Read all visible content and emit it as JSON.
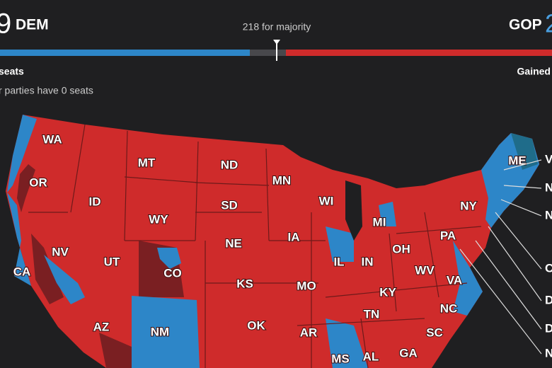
{
  "header": {
    "dem_count": "9",
    "dem_label": "DEM",
    "majority": "218 for majority",
    "gop_label": "GOP",
    "gop_count": "2",
    "dem_seats": "seats",
    "gop_gained": "Gained",
    "other_parties": "r parties have 0 seats"
  },
  "map": {
    "states": [
      "WA",
      "OR",
      "CA",
      "NV",
      "ID",
      "MT",
      "WY",
      "UT",
      "AZ",
      "CO",
      "NM",
      "ND",
      "SD",
      "NE",
      "KS",
      "OK",
      "MN",
      "IA",
      "MO",
      "AR",
      "WI",
      "IL",
      "MI",
      "IN",
      "OH",
      "KY",
      "TN",
      "MS",
      "AL",
      "GA",
      "SC",
      "NC",
      "VA",
      "WV",
      "PA",
      "NY",
      "ME"
    ],
    "callouts": [
      "V",
      "N",
      "N",
      "C",
      "D",
      "D",
      "N"
    ]
  }
}
